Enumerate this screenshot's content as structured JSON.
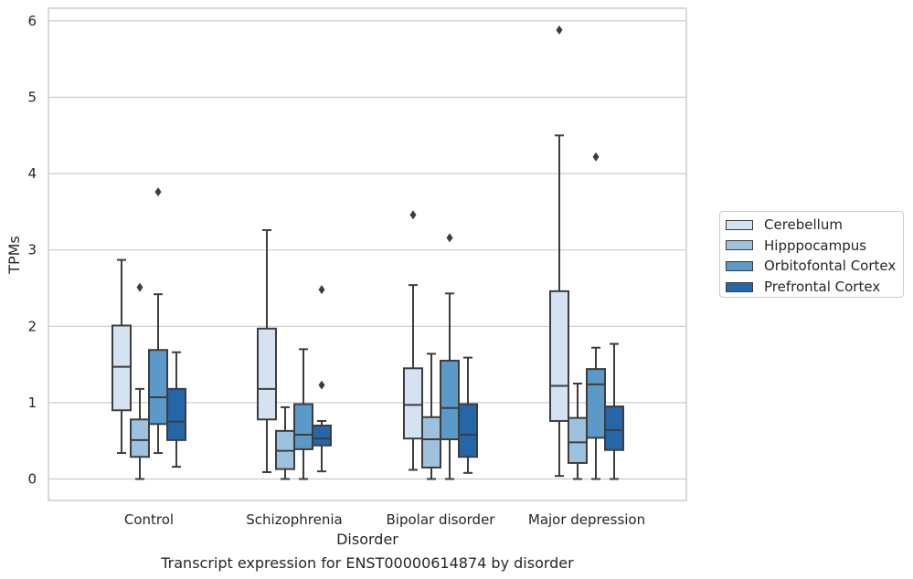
{
  "chart_data": {
    "type": "box",
    "title": "Transcript expression for ENST00000614874 by disorder",
    "xlabel": "Disorder",
    "ylabel": "TPMs",
    "ylim": [
      -0.28,
      6.18
    ],
    "yticks": [
      0,
      1,
      2,
      3,
      4,
      5,
      6
    ],
    "ytick_labels": [
      "0",
      "1",
      "2",
      "3",
      "4",
      "5",
      "6"
    ],
    "categories": [
      "Control",
      "Schizophrenia",
      "Bipolar disorder",
      "Major depression"
    ],
    "grid": true,
    "legend_position": "right",
    "series": [
      {
        "name": "Cerebellum",
        "color": "#d4e2f1",
        "boxes": [
          {
            "min": 0.34,
            "q1": 0.9,
            "median": 1.47,
            "q3": 2.01,
            "max": 2.87,
            "fliers": []
          },
          {
            "min": 0.09,
            "q1": 0.78,
            "median": 1.18,
            "q3": 1.97,
            "max": 3.26,
            "fliers": []
          },
          {
            "min": 0.12,
            "q1": 0.53,
            "median": 0.97,
            "q3": 1.45,
            "max": 2.54,
            "fliers": [
              3.46
            ]
          },
          {
            "min": 0.04,
            "q1": 0.76,
            "median": 1.22,
            "q3": 2.46,
            "max": 4.5,
            "fliers": [
              5.88
            ]
          }
        ]
      },
      {
        "name": "Hipppocampus",
        "color": "#9dc2df",
        "boxes": [
          {
            "min": 0.0,
            "q1": 0.29,
            "median": 0.51,
            "q3": 0.78,
            "max": 1.18,
            "fliers": [
              2.51
            ]
          },
          {
            "min": 0.0,
            "q1": 0.13,
            "median": 0.37,
            "q3": 0.63,
            "max": 0.94,
            "fliers": []
          },
          {
            "min": 0.0,
            "q1": 0.15,
            "median": 0.52,
            "q3": 0.81,
            "max": 1.64,
            "fliers": []
          },
          {
            "min": 0.0,
            "q1": 0.21,
            "median": 0.48,
            "q3": 0.8,
            "max": 1.25,
            "fliers": []
          }
        ]
      },
      {
        "name": "Orbitofontal Cortex",
        "color": "#5a99c8",
        "boxes": [
          {
            "min": 0.34,
            "q1": 0.72,
            "median": 1.07,
            "q3": 1.69,
            "max": 2.42,
            "fliers": [
              3.76
            ]
          },
          {
            "min": 0.0,
            "q1": 0.39,
            "median": 0.58,
            "q3": 0.98,
            "max": 1.7,
            "fliers": []
          },
          {
            "min": 0.0,
            "q1": 0.52,
            "median": 0.93,
            "q3": 1.55,
            "max": 2.43,
            "fliers": [
              3.16
            ]
          },
          {
            "min": 0.0,
            "q1": 0.54,
            "median": 1.24,
            "q3": 1.44,
            "max": 1.72,
            "fliers": [
              4.22
            ]
          }
        ]
      },
      {
        "name": "Prefrontal Cortex",
        "color": "#2566a8",
        "boxes": [
          {
            "min": 0.16,
            "q1": 0.51,
            "median": 0.75,
            "q3": 1.18,
            "max": 1.66,
            "fliers": []
          },
          {
            "min": 0.1,
            "q1": 0.44,
            "median": 0.53,
            "q3": 0.7,
            "max": 0.76,
            "fliers": [
              1.23,
              2.48
            ]
          },
          {
            "min": 0.08,
            "q1": 0.29,
            "median": 0.58,
            "q3": 0.98,
            "max": 1.59,
            "fliers": []
          },
          {
            "min": 0.0,
            "q1": 0.38,
            "median": 0.64,
            "q3": 0.95,
            "max": 1.77,
            "fliers": []
          }
        ]
      }
    ]
  }
}
